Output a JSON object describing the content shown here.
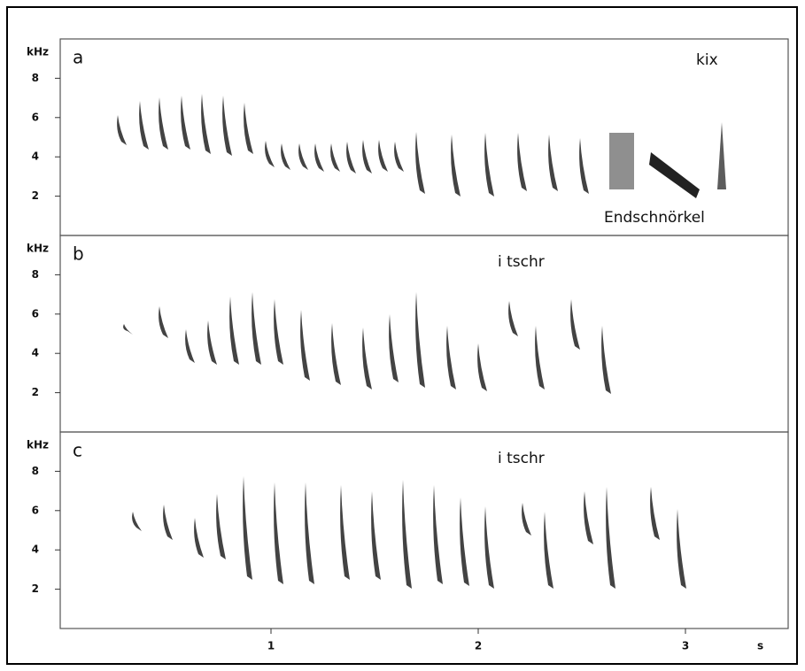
{
  "chart_data": [
    {
      "type": "spectrogram",
      "panel": "a",
      "y_label": "kHz",
      "annotations": [
        "kix",
        "Endschnörkel"
      ],
      "ylim": [
        0,
        10
      ],
      "yticks": [
        2,
        4,
        6,
        8
      ]
    },
    {
      "type": "spectrogram",
      "panel": "b",
      "y_label": "kHz",
      "annotations": [
        "i tschr"
      ],
      "ylim": [
        0,
        10
      ],
      "yticks": [
        2,
        4,
        6,
        8
      ]
    },
    {
      "type": "spectrogram",
      "panel": "c",
      "y_label": "kHz",
      "annotations": [
        "i tschr"
      ],
      "ylim": [
        0,
        10
      ],
      "yticks": [
        2,
        4,
        6,
        8
      ],
      "x_label": "s",
      "xlim": [
        0,
        3.5
      ],
      "xticks": [
        1,
        2,
        3
      ]
    }
  ]
}
